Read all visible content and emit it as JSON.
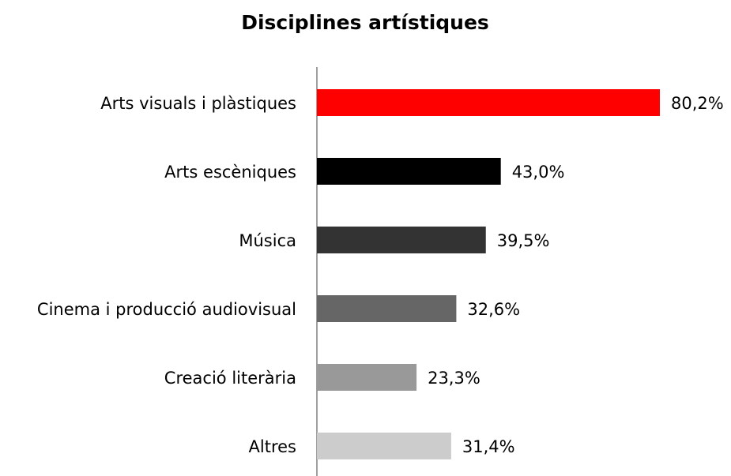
{
  "chart_data": {
    "type": "barh",
    "title": "Disciplines artístiques",
    "categories": [
      "Arts visuals i plàstiques",
      "Arts escèniques",
      "Música",
      "Cinema i producció audiovisual",
      "Creació literària",
      "Altres"
    ],
    "values": [
      80.2,
      43.0,
      39.5,
      32.6,
      23.3,
      31.4
    ],
    "value_labels": [
      "80,2%",
      "43,0%",
      "39,5%",
      "32,6%",
      "23,3%",
      "31,4%"
    ],
    "colors": [
      "#ff0000",
      "#000000",
      "#333333",
      "#666666",
      "#999999",
      "#cccccc"
    ]
  }
}
